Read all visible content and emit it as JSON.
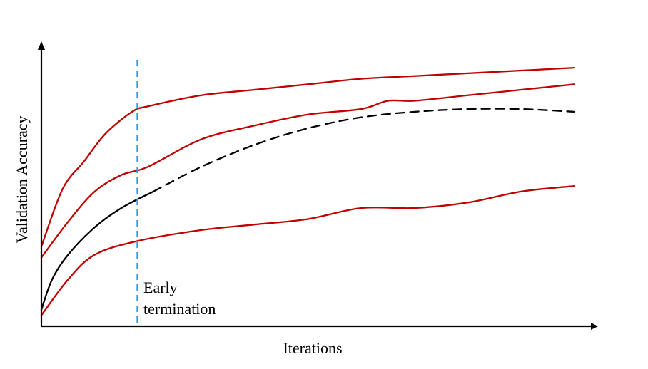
{
  "chart_data": {
    "type": "line",
    "xlabel": "Iterations",
    "ylabel": "Validation Accuracy",
    "annotations": [
      "Early",
      "termination"
    ],
    "x_ticks": [],
    "y_ticks": [],
    "grid": false,
    "x_range": [
      0,
      1
    ],
    "y_range": [
      0,
      1
    ],
    "early_termination_x": 0.18,
    "series": [
      {
        "color": "#c00000",
        "style": "solid",
        "x": [
          0.0,
          0.04,
          0.08,
          0.12,
          0.17,
          0.2,
          0.3,
          0.4,
          0.5,
          0.6,
          0.7,
          0.8,
          0.9,
          1.0
        ],
        "y": [
          0.29,
          0.5,
          0.6,
          0.7,
          0.78,
          0.8,
          0.84,
          0.86,
          0.88,
          0.9,
          0.91,
          0.92,
          0.93,
          0.94
        ]
      },
      {
        "color": "#c00000",
        "style": "solid",
        "x": [
          0.0,
          0.05,
          0.1,
          0.15,
          0.2,
          0.3,
          0.4,
          0.5,
          0.6,
          0.65,
          0.7,
          0.8,
          0.9,
          1.0
        ],
        "y": [
          0.25,
          0.38,
          0.49,
          0.55,
          0.58,
          0.68,
          0.73,
          0.77,
          0.79,
          0.82,
          0.82,
          0.84,
          0.86,
          0.88
        ]
      },
      {
        "color": "#c00000",
        "style": "solid",
        "x": [
          0.0,
          0.05,
          0.1,
          0.18,
          0.3,
          0.4,
          0.5,
          0.6,
          0.7,
          0.8,
          0.9,
          1.0
        ],
        "y": [
          0.04,
          0.17,
          0.26,
          0.31,
          0.35,
          0.37,
          0.39,
          0.43,
          0.43,
          0.45,
          0.49,
          0.51
        ]
      },
      {
        "color": "#000000",
        "style": "solid",
        "x": [
          0.0,
          0.02,
          0.05,
          0.1,
          0.15,
          0.21
        ],
        "y": [
          0.06,
          0.17,
          0.26,
          0.36,
          0.43,
          0.49
        ]
      },
      {
        "color": "#000000",
        "style": "dashed",
        "x": [
          0.21,
          0.3,
          0.4,
          0.5,
          0.6,
          0.7,
          0.8,
          0.9,
          1.0
        ],
        "y": [
          0.49,
          0.58,
          0.66,
          0.72,
          0.76,
          0.78,
          0.79,
          0.79,
          0.78
        ]
      }
    ],
    "marker_line": {
      "color": "#1fa3d8",
      "style": "dashed"
    }
  }
}
